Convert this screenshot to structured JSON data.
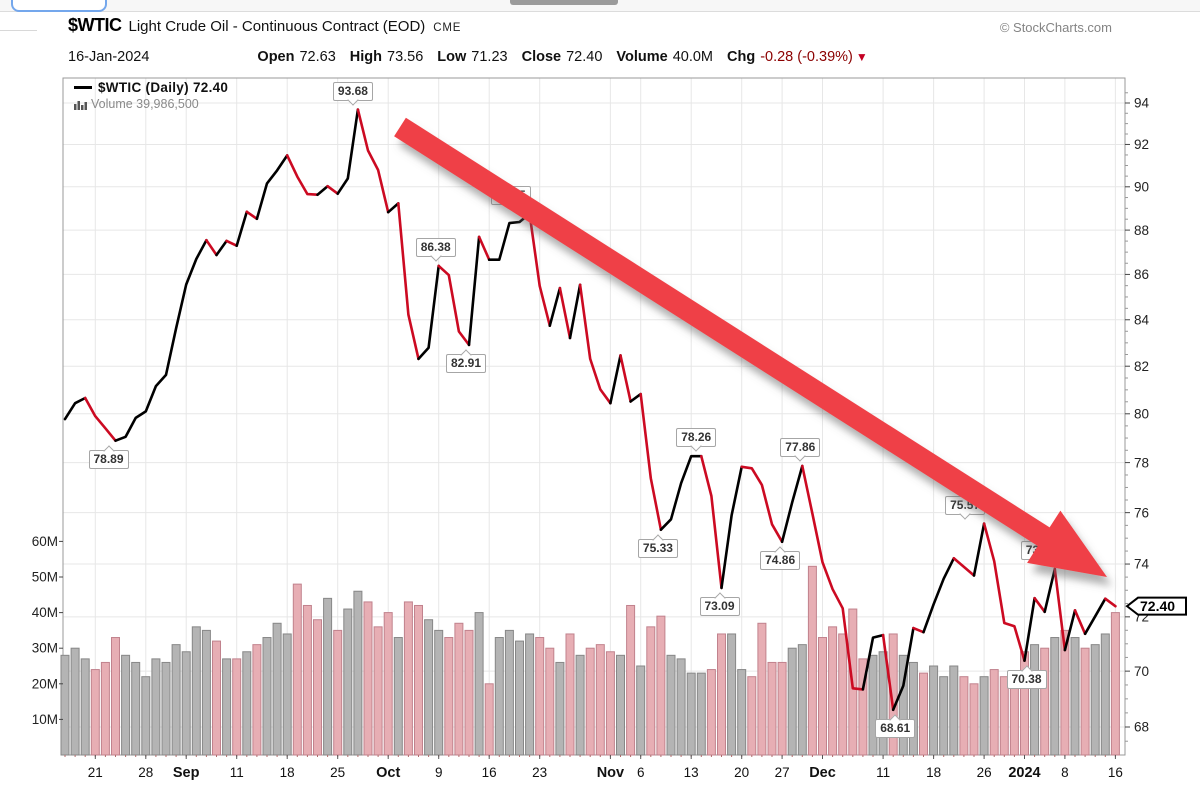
{
  "colors": {
    "up_line": "#000000",
    "down_line": "#cc0a22",
    "up_vol_fill": "#b4b4b4",
    "up_vol_edge": "#878787",
    "down_vol_fill": "#e7aeb4",
    "down_vol_edge": "#c1828d",
    "grid": "#e7e7e7",
    "frame": "#999999",
    "arrow": "#ef4146",
    "chg_value": "#8b0000",
    "tag_border": "#000000"
  },
  "header": {
    "symbol": "$WTIC",
    "description": "Light Crude Oil - Continuous Contract (EOD)",
    "exchange": "CME",
    "watermark": "© StockCharts.com",
    "date": "16-Jan-2024",
    "ohlc": [
      {
        "label": "Open",
        "value": "72.63"
      },
      {
        "label": "High",
        "value": "73.56"
      },
      {
        "label": "Low",
        "value": "71.23"
      },
      {
        "label": "Close",
        "value": "72.40"
      },
      {
        "label": "Volume",
        "value": "40.0M"
      },
      {
        "label": "Chg",
        "value": "-0.28 (-0.39%)",
        "chg": true,
        "arrow": "▼"
      }
    ]
  },
  "legend": {
    "price_line": "$WTIC (Daily) 72.40",
    "volume": "Volume 39,986,500"
  },
  "chart_data": {
    "type": "line",
    "title": "$WTIC Light Crude Oil - Continuous Contract (EOD) CME",
    "date_range": "16-Aug-2023 to 16-Jan-2024",
    "scale": "log",
    "price_axis_ticks": [
      94,
      92,
      90,
      88,
      86,
      84,
      82,
      80,
      78,
      76,
      74,
      72,
      70,
      68
    ],
    "volume_axis_ticks": [
      "60M",
      "50M",
      "40M",
      "30M",
      "20M",
      "10M"
    ],
    "x": [
      "Aug 16",
      "Aug 17",
      "Aug 18",
      "Aug 21",
      "Aug 22",
      "Aug 23",
      "Aug 24",
      "Aug 25",
      "Aug 28",
      "Aug 29",
      "Aug 30",
      "Aug 31",
      "Sep 1",
      "Sep 5",
      "Sep 6",
      "Sep 7",
      "Sep 8",
      "Sep 11",
      "Sep 12",
      "Sep 13",
      "Sep 14",
      "Sep 15",
      "Sep 18",
      "Sep 19",
      "Sep 20",
      "Sep 21",
      "Sep 22",
      "Sep 25",
      "Sep 26",
      "Sep 27",
      "Sep 28",
      "Sep 29",
      "Oct 2",
      "Oct 3",
      "Oct 4",
      "Oct 5",
      "Oct 6",
      "Oct 9",
      "Oct 10",
      "Oct 11",
      "Oct 12",
      "Oct 13",
      "Oct 16",
      "Oct 17",
      "Oct 18",
      "Oct 19",
      "Oct 20",
      "Oct 23",
      "Oct 24",
      "Oct 25",
      "Oct 26",
      "Oct 27",
      "Oct 30",
      "Oct 31",
      "Nov 1",
      "Nov 2",
      "Nov 3",
      "Nov 6",
      "Nov 7",
      "Nov 8",
      "Nov 9",
      "Nov 10",
      "Nov 13",
      "Nov 14",
      "Nov 15",
      "Nov 16",
      "Nov 17",
      "Nov 20",
      "Nov 21",
      "Nov 22",
      "Nov 24",
      "Nov 27",
      "Nov 28",
      "Nov 29",
      "Nov 30",
      "Dec 1",
      "Dec 4",
      "Dec 5",
      "Dec 6",
      "Dec 7",
      "Dec 8",
      "Dec 11",
      "Dec 12",
      "Dec 13",
      "Dec 14",
      "Dec 15",
      "Dec 18",
      "Dec 19",
      "Dec 20",
      "Dec 21",
      "Dec 22",
      "Dec 26",
      "Dec 27",
      "Dec 28",
      "Dec 29",
      "Jan 2",
      "Jan 3",
      "Jan 4",
      "Jan 5",
      "Jan 8",
      "Jan 9",
      "Jan 10",
      "Jan 11",
      "Jan 12",
      "Jan 16"
    ],
    "series": [
      {
        "name": "$WTIC (Daily) Close",
        "type": "line",
        "values": [
          79.78,
          80.44,
          80.66,
          79.9,
          79.4,
          78.89,
          79.05,
          79.83,
          80.1,
          81.16,
          81.63,
          83.63,
          85.55,
          86.69,
          87.54,
          86.87,
          87.51,
          87.29,
          88.84,
          88.52,
          90.16,
          90.77,
          91.48,
          90.48,
          89.66,
          89.63,
          90.03,
          89.68,
          90.39,
          93.68,
          91.71,
          90.79,
          88.82,
          89.23,
          84.22,
          82.31,
          82.79,
          86.38,
          85.97,
          83.49,
          82.91,
          87.69,
          86.66,
          86.66,
          88.32,
          88.37,
          88.75,
          85.49,
          83.74,
          85.39,
          83.21,
          85.54,
          82.31,
          81.02,
          80.44,
          82.46,
          80.51,
          80.82,
          77.37,
          75.33,
          75.74,
          77.17,
          78.26,
          78.26,
          76.66,
          73.09,
          75.89,
          77.83,
          77.77,
          77.1,
          75.54,
          74.86,
          76.41,
          77.86,
          75.96,
          74.07,
          73.04,
          72.32,
          69.38,
          69.34,
          71.23,
          71.32,
          68.61,
          69.47,
          71.58,
          71.43,
          72.47,
          73.44,
          74.22,
          73.89,
          73.56,
          75.57,
          74.11,
          71.77,
          71.65,
          70.38,
          72.7,
          72.19,
          73.81,
          70.77,
          72.24,
          71.37,
          72.02,
          72.68,
          72.4
        ]
      },
      {
        "name": "Volume (millions)",
        "type": "bar",
        "values": [
          28,
          30,
          27,
          24,
          26,
          33,
          28,
          26,
          22,
          27,
          26,
          31,
          29,
          36,
          35,
          32,
          27,
          27,
          29,
          31,
          33,
          37,
          34,
          48,
          42,
          38,
          44,
          35,
          41,
          46,
          43,
          36,
          40,
          33,
          43,
          42,
          38,
          35,
          33,
          37,
          35,
          40,
          20,
          33,
          35,
          32,
          34,
          33,
          30,
          26,
          34,
          28,
          30,
          31,
          29,
          28,
          42,
          25,
          36,
          39,
          28,
          27,
          23,
          23,
          24,
          34,
          34,
          24,
          22,
          37,
          26,
          26,
          30,
          31,
          53,
          33,
          36,
          34,
          41,
          27,
          28,
          29,
          34,
          28,
          26,
          23,
          25,
          22,
          25,
          22,
          20,
          22,
          24,
          22,
          23,
          29,
          31,
          30,
          33,
          35,
          33,
          30,
          31,
          34,
          40
        ]
      }
    ],
    "x_axis_labels": [
      {
        "text": "21",
        "index": 3,
        "bold": false
      },
      {
        "text": "28",
        "index": 8,
        "bold": false
      },
      {
        "text": "Sep",
        "index": 12,
        "bold": true
      },
      {
        "text": "11",
        "index": 17,
        "bold": false
      },
      {
        "text": "18",
        "index": 22,
        "bold": false
      },
      {
        "text": "25",
        "index": 27,
        "bold": false
      },
      {
        "text": "Oct",
        "index": 32,
        "bold": true
      },
      {
        "text": "9",
        "index": 37,
        "bold": false
      },
      {
        "text": "16",
        "index": 42,
        "bold": false
      },
      {
        "text": "23",
        "index": 47,
        "bold": false
      },
      {
        "text": "Nov",
        "index": 54,
        "bold": true
      },
      {
        "text": "6",
        "index": 57,
        "bold": false
      },
      {
        "text": "13",
        "index": 62,
        "bold": false
      },
      {
        "text": "20",
        "index": 67,
        "bold": false
      },
      {
        "text": "27",
        "index": 71,
        "bold": false
      },
      {
        "text": "Dec",
        "index": 75,
        "bold": true
      },
      {
        "text": "11",
        "index": 81,
        "bold": false
      },
      {
        "text": "18",
        "index": 86,
        "bold": false
      },
      {
        "text": "26",
        "index": 91,
        "bold": false
      },
      {
        "text": "2024",
        "index": 95,
        "bold": true
      },
      {
        "text": "8",
        "index": 99,
        "bold": false
      },
      {
        "text": "16",
        "index": 104,
        "bold": false
      }
    ],
    "annotations": [
      {
        "value": "78.89",
        "index": 5,
        "side": "below",
        "dx": -7
      },
      {
        "value": "93.68",
        "index": 29,
        "side": "above",
        "dx": -5
      },
      {
        "value": "86.38",
        "index": 37,
        "side": "above",
        "dx": -3
      },
      {
        "value": "82.91",
        "index": 40,
        "side": "below",
        "dx": -3
      },
      {
        "value": "88.75",
        "index": 46,
        "side": "above",
        "dx": -19,
        "partially_covered": true
      },
      {
        "value": "75.33",
        "index": 59,
        "side": "below",
        "dx": -3
      },
      {
        "value": "78.26",
        "index": 62,
        "side": "above",
        "dx": 5
      },
      {
        "value": "73.09",
        "index": 65,
        "side": "below",
        "dx": -2
      },
      {
        "value": "74.86",
        "index": 71,
        "side": "below",
        "dx": -2
      },
      {
        "value": "77.86",
        "index": 73,
        "side": "above",
        "dx": -2
      },
      {
        "value": "68.61",
        "index": 82,
        "side": "below",
        "dx": 2
      },
      {
        "value": "75.57",
        "index": 91,
        "side": "above",
        "dx": -19,
        "partially_covered": true
      },
      {
        "value": "70.38",
        "index": 95,
        "side": "below",
        "dx": 2
      },
      {
        "value": "73.81",
        "index": 98,
        "side": "above",
        "dx": -14,
        "partially_covered": true
      }
    ],
    "last_price_tag": {
      "text": "72.40",
      "price": 72.4
    },
    "trend_arrow": {
      "start": [
        400,
        127
      ],
      "end": [
        1107,
        577
      ],
      "shaft_half_width": 11,
      "head_length": 75,
      "head_half_width": 31
    }
  }
}
